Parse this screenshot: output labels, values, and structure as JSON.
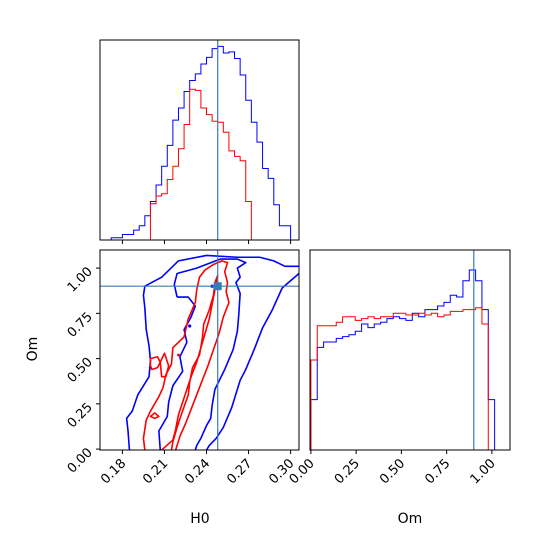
{
  "chart_data": [
    {
      "panel": "H0 marginal histogram",
      "type": "histogram",
      "truth_value": 0.248,
      "x_range": [
        0.164,
        0.306
      ],
      "series": [
        {
          "color": "#0000ff",
          "bins": [
            0.168,
            0.172,
            0.176,
            0.18,
            0.184,
            0.188,
            0.192,
            0.196,
            0.2,
            0.204,
            0.208,
            0.212,
            0.216,
            0.22,
            0.224,
            0.228,
            0.232,
            0.236,
            0.24,
            0.244,
            0.248,
            0.252,
            0.256,
            0.26,
            0.264,
            0.268,
            0.272,
            0.276,
            0.28,
            0.284,
            0.288,
            0.292,
            0.296,
            0.3,
            0.304
          ],
          "counts": [
            0,
            2,
            2,
            5,
            5,
            9,
            13,
            22,
            35,
            50,
            67,
            86,
            109,
            120,
            135,
            145,
            151,
            160,
            166,
            174,
            176,
            170,
            171,
            165,
            150,
            127,
            107,
            89,
            65,
            56,
            32,
            13,
            13,
            0
          ]
        },
        {
          "color": "#ff0000",
          "bins": [
            0.196,
            0.2,
            0.204,
            0.208,
            0.212,
            0.216,
            0.22,
            0.224,
            0.228,
            0.232,
            0.236,
            0.24,
            0.244,
            0.248,
            0.252,
            0.256,
            0.26,
            0.264,
            0.268,
            0.272,
            0.276
          ],
          "counts": [
            0,
            33,
            40,
            42,
            55,
            67,
            83,
            105,
            137,
            136,
            120,
            114,
            108,
            107,
            98,
            81,
            76,
            72,
            35,
            0
          ]
        }
      ]
    },
    {
      "panel": "H0 vs Om 2D contours",
      "type": "contour",
      "x": {
        "label": "H0",
        "ticks": [
          "0.18",
          "0.21",
          "0.24",
          "0.27",
          "0.30"
        ],
        "range": [
          0.164,
          0.306
        ]
      },
      "y": {
        "label": "Om",
        "ticks": [
          "0.00",
          "0.25",
          "0.50",
          "0.75",
          "1.00"
        ],
        "range": [
          -0.005,
          1.1
        ]
      },
      "truth": {
        "H0": 0.248,
        "Om": 0.9
      },
      "series": [
        {
          "color": "#0000ff",
          "contour_levels": [
            "outer",
            "inner"
          ]
        },
        {
          "color": "#ff0000",
          "contour_levels": [
            "outer",
            "inner"
          ]
        }
      ]
    },
    {
      "panel": "Om marginal histogram",
      "type": "histogram",
      "truth_value": 0.9,
      "x": {
        "label": "Om",
        "ticks": [
          "0.00",
          "0.25",
          "0.50",
          "0.75",
          "1.00"
        ],
        "range": [
          -0.005,
          1.1
        ]
      },
      "series": [
        {
          "color": "#0000ff",
          "bins": [
            0.0,
            0.035,
            0.07,
            0.105,
            0.14,
            0.175,
            0.21,
            0.245,
            0.28,
            0.315,
            0.35,
            0.385,
            0.42,
            0.455,
            0.49,
            0.525,
            0.56,
            0.595,
            0.63,
            0.665,
            0.7,
            0.735,
            0.77,
            0.805,
            0.84,
            0.875,
            0.91,
            0.945,
            0.98,
            1.015,
            1.05
          ],
          "counts": [
            0.28,
            0.57,
            0.6,
            0.6,
            0.62,
            0.63,
            0.64,
            0.66,
            0.7,
            0.68,
            0.7,
            0.71,
            0.73,
            0.74,
            0.73,
            0.72,
            0.76,
            0.74,
            0.78,
            0.78,
            0.8,
            0.82,
            0.86,
            0.85,
            0.94,
            1.0,
            0.94,
            0.78,
            0.28,
            0.0
          ]
        },
        {
          "color": "#ff0000",
          "bins": [
            0.0,
            0.035,
            0.07,
            0.105,
            0.14,
            0.175,
            0.21,
            0.245,
            0.28,
            0.315,
            0.35,
            0.385,
            0.42,
            0.455,
            0.49,
            0.525,
            0.56,
            0.595,
            0.63,
            0.665,
            0.7,
            0.735,
            0.77,
            0.805,
            0.84,
            0.875,
            0.91,
            0.945,
            0.98,
            1.015
          ],
          "counts": [
            0.5,
            0.69,
            0.69,
            0.69,
            0.71,
            0.74,
            0.74,
            0.72,
            0.73,
            0.74,
            0.73,
            0.74,
            0.74,
            0.76,
            0.76,
            0.75,
            0.75,
            0.76,
            0.75,
            0.76,
            0.74,
            0.75,
            0.77,
            0.77,
            0.78,
            0.78,
            0.79,
            0.7,
            0.0
          ]
        }
      ]
    }
  ]
}
